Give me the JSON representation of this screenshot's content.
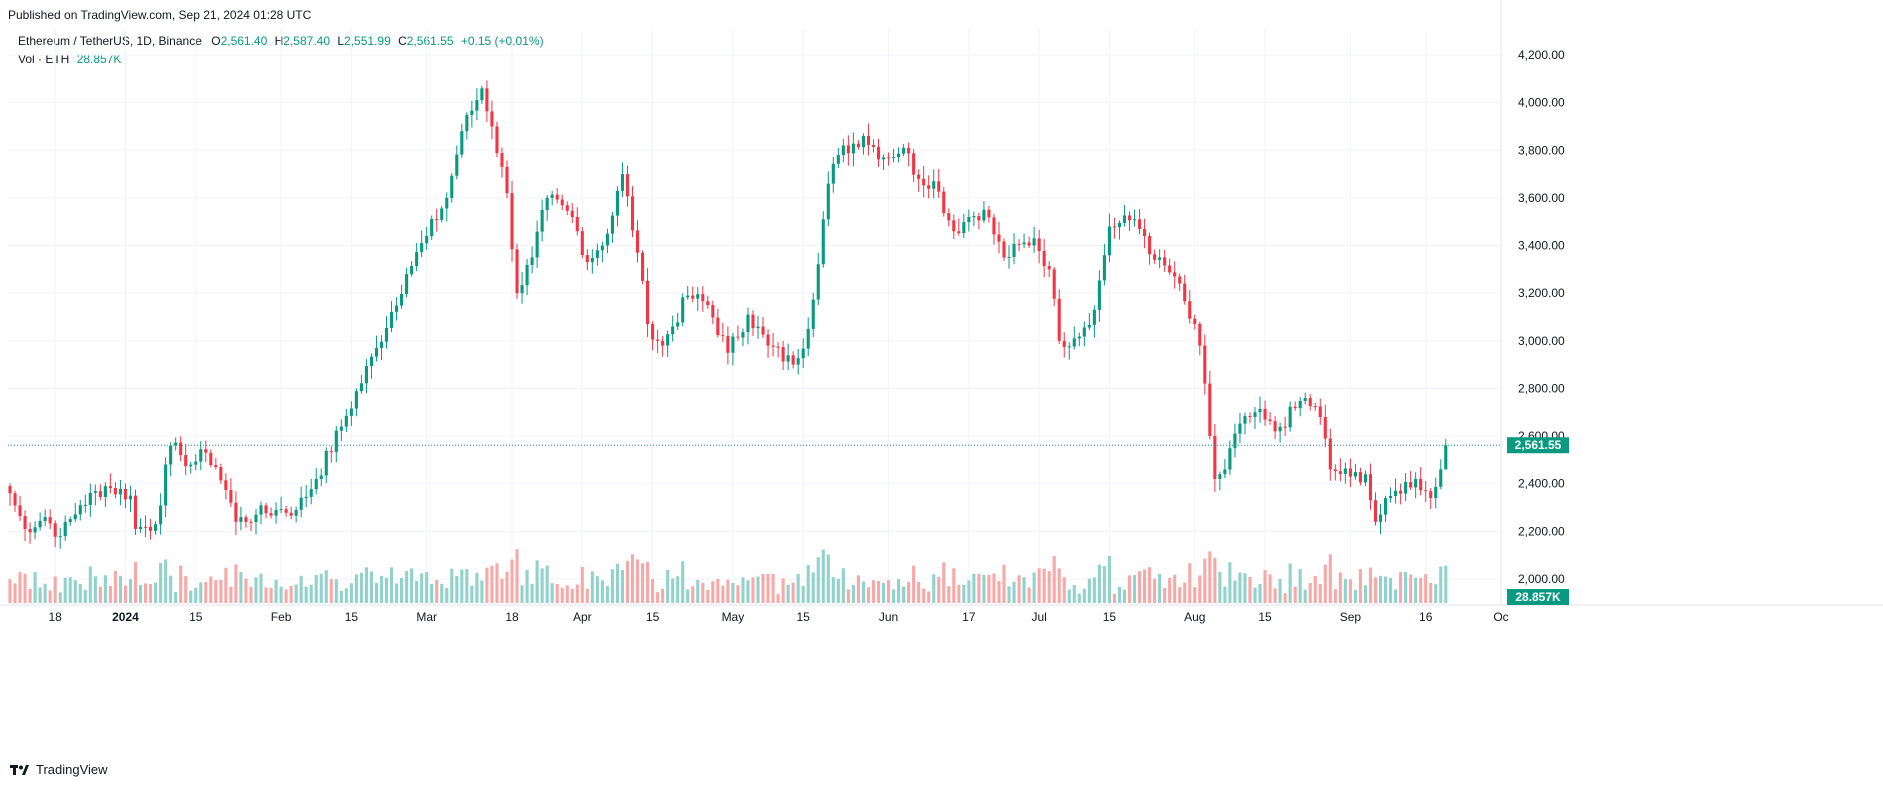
{
  "header": {
    "published": "Published on TradingView.com, Sep 21, 2024 01:28 UTC"
  },
  "legend": {
    "symbol": "Ethereum / TetherUS, 1D, Binance",
    "o_label": "O",
    "o_value": "2,561.40",
    "h_label": "H",
    "h_value": "2,587.40",
    "l_label": "L",
    "l_value": "2,551.99",
    "c_label": "C",
    "c_value": "2,561.55",
    "change": "+0.15 (+0.01%)",
    "vol_label": "Vol · ETH",
    "vol_value": "28.857K"
  },
  "price_badge": "2,561.55",
  "volume_badge": "28.857K",
  "footer": {
    "brand": "TradingView"
  },
  "colors": {
    "up": "#089981",
    "down": "#f23645",
    "up_vol": "#92d2cc",
    "down_vol": "#f7a9a7",
    "grid": "#f0f3fa"
  },
  "chart_data": {
    "type": "candlestick",
    "y_ticks": [
      "4,200.00",
      "4,000.00",
      "3,800.00",
      "3,600.00",
      "3,400.00",
      "3,200.00",
      "3,000.00",
      "2,800.00",
      "2,600.00",
      "2,400.00",
      "2,200.00",
      "2,000.00"
    ],
    "y_tick_values": [
      4200,
      4000,
      3800,
      3600,
      3400,
      3200,
      3000,
      2800,
      2600,
      2400,
      2200,
      2000
    ],
    "x_ticks": [
      {
        "label": "18",
        "date": "2023-12-18"
      },
      {
        "label": "2024",
        "date": "2024-01-01",
        "bold": true
      },
      {
        "label": "15",
        "date": "2024-01-15"
      },
      {
        "label": "Feb",
        "date": "2024-02-01"
      },
      {
        "label": "15",
        "date": "2024-02-15"
      },
      {
        "label": "Mar",
        "date": "2024-03-01"
      },
      {
        "label": "18",
        "date": "2024-03-18"
      },
      {
        "label": "Apr",
        "date": "2024-04-01"
      },
      {
        "label": "15",
        "date": "2024-04-15"
      },
      {
        "label": "May",
        "date": "2024-05-01"
      },
      {
        "label": "15",
        "date": "2024-05-15"
      },
      {
        "label": "Jun",
        "date": "2024-06-01"
      },
      {
        "label": "17",
        "date": "2024-06-17"
      },
      {
        "label": "Jul",
        "date": "2024-07-01"
      },
      {
        "label": "15",
        "date": "2024-07-15"
      },
      {
        "label": "Aug",
        "date": "2024-08-01"
      },
      {
        "label": "15",
        "date": "2024-08-15"
      },
      {
        "label": "Sep",
        "date": "2024-09-01"
      },
      {
        "label": "16",
        "date": "2024-09-16"
      },
      {
        "label": "Oc",
        "date": "2024-10-01"
      }
    ],
    "start_date": "2023-12-09",
    "end_date": "2024-09-20",
    "last_price": 2561.55,
    "anchors": [
      [
        "2023-12-09",
        2360
      ],
      [
        "2023-12-12",
        2210
      ],
      [
        "2023-12-16",
        2260
      ],
      [
        "2023-12-19",
        2180
      ],
      [
        "2023-12-23",
        2310
      ],
      [
        "2023-12-28",
        2390
      ],
      [
        "2024-01-02",
        2350
      ],
      [
        "2024-01-03",
        2210
      ],
      [
        "2024-01-07",
        2230
      ],
      [
        "2024-01-10",
        2560
      ],
      [
        "2024-01-12",
        2520
      ],
      [
        "2024-01-14",
        2480
      ],
      [
        "2024-01-17",
        2530
      ],
      [
        "2024-01-19",
        2470
      ],
      [
        "2024-01-22",
        2320
      ],
      [
        "2024-01-23",
        2240
      ],
      [
        "2024-01-27",
        2270
      ],
      [
        "2024-01-31",
        2290
      ],
      [
        "2024-02-04",
        2290
      ],
      [
        "2024-02-08",
        2420
      ],
      [
        "2024-02-13",
        2640
      ],
      [
        "2024-02-20",
        2970
      ],
      [
        "2024-02-26",
        3280
      ],
      [
        "2024-03-01",
        3440
      ],
      [
        "2024-03-05",
        3600
      ],
      [
        "2024-03-08",
        3880
      ],
      [
        "2024-03-12",
        4060
      ],
      [
        "2024-03-14",
        3900
      ],
      [
        "2024-03-17",
        3620
      ],
      [
        "2024-03-19",
        3200
      ],
      [
        "2024-03-22",
        3350
      ],
      [
        "2024-03-25",
        3600
      ],
      [
        "2024-03-30",
        3520
      ],
      [
        "2024-04-02",
        3330
      ],
      [
        "2024-04-06",
        3450
      ],
      [
        "2024-04-09",
        3700
      ],
      [
        "2024-04-12",
        3370
      ],
      [
        "2024-04-14",
        3070
      ],
      [
        "2024-04-17",
        2980
      ],
      [
        "2024-04-22",
        3190
      ],
      [
        "2024-04-26",
        3150
      ],
      [
        "2024-04-30",
        2950
      ],
      [
        "2024-05-04",
        3110
      ],
      [
        "2024-05-08",
        2980
      ],
      [
        "2024-05-13",
        2900
      ],
      [
        "2024-05-16",
        3050
      ],
      [
        "2024-05-20",
        3660
      ],
      [
        "2024-05-22",
        3780
      ],
      [
        "2024-05-27",
        3860
      ],
      [
        "2024-05-31",
        3770
      ],
      [
        "2024-06-04",
        3810
      ],
      [
        "2024-06-07",
        3680
      ],
      [
        "2024-06-10",
        3670
      ],
      [
        "2024-06-14",
        3460
      ],
      [
        "2024-06-17",
        3520
      ],
      [
        "2024-06-20",
        3550
      ],
      [
        "2024-06-24",
        3350
      ],
      [
        "2024-06-30",
        3430
      ],
      [
        "2024-07-03",
        3300
      ],
      [
        "2024-07-05",
        3000
      ],
      [
        "2024-07-08",
        3010
      ],
      [
        "2024-07-12",
        3130
      ],
      [
        "2024-07-15",
        3480
      ],
      [
        "2024-07-20",
        3510
      ],
      [
        "2024-07-22",
        3440
      ],
      [
        "2024-07-24",
        3340
      ],
      [
        "2024-07-28",
        3270
      ],
      [
        "2024-08-02",
        2980
      ],
      [
        "2024-08-05",
        2420
      ],
      [
        "2024-08-07",
        2460
      ],
      [
        "2024-08-09",
        2610
      ],
      [
        "2024-08-13",
        2700
      ],
      [
        "2024-08-17",
        2620
      ],
      [
        "2024-08-23",
        2760
      ],
      [
        "2024-08-26",
        2680
      ],
      [
        "2024-08-28",
        2460
      ],
      [
        "2024-09-01",
        2430
      ],
      [
        "2024-09-04",
        2440
      ],
      [
        "2024-09-06",
        2240
      ],
      [
        "2024-09-10",
        2370
      ],
      [
        "2024-09-14",
        2420
      ],
      [
        "2024-09-17",
        2340
      ],
      [
        "2024-09-19",
        2460
      ],
      [
        "2024-09-20",
        2561.55
      ]
    ],
    "y_range": [
      1880,
      4290
    ]
  }
}
